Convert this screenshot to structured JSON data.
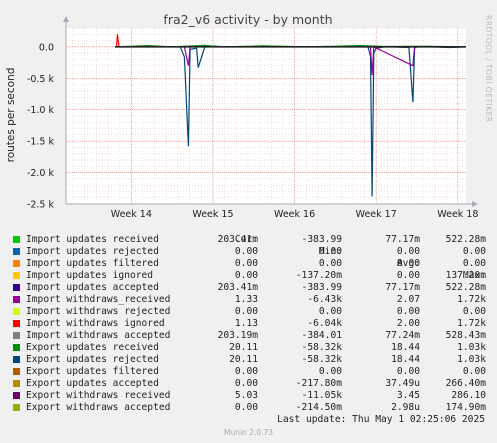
{
  "chart_data": {
    "type": "line",
    "title": "fra2_v6 activity - by month",
    "ylabel": "routes per second",
    "side_label": "RRDTOOL / TOBI OETIKER",
    "ylim": [
      -2500,
      300
    ],
    "y_ticks": [
      {
        "value": 0,
        "label": "0.0"
      },
      {
        "value": -500,
        "label": "-0.5 k"
      },
      {
        "value": -1000,
        "label": "-1.0 k"
      },
      {
        "value": -1500,
        "label": "-1.5 k"
      },
      {
        "value": -2000,
        "label": "-2.0 k"
      },
      {
        "value": -2500,
        "label": "-2.5 k"
      }
    ],
    "x_range": [
      13.2,
      18.1
    ],
    "x_ticks": [
      {
        "value": 14,
        "label": "Week 14"
      },
      {
        "value": 15,
        "label": "Week 15"
      },
      {
        "value": 16,
        "label": "Week 16"
      },
      {
        "value": 17,
        "label": "Week 17"
      },
      {
        "value": 18,
        "label": "Week 18"
      }
    ],
    "grid": true,
    "legend_header": {
      "cur": "Cur:",
      "min": "Min:",
      "avg": "Avg:",
      "max": "Max:"
    },
    "series": [
      {
        "name": "Import updates received",
        "color": "#00cc00",
        "cur": "203.41m",
        "min": "-383.99",
        "avg": "77.17m",
        "max": "522.28m"
      },
      {
        "name": "Import updates rejected",
        "color": "#0066b3",
        "cur": "0.00",
        "min": "0.00",
        "avg": "0.00",
        "max": "0.00"
      },
      {
        "name": "Import updates filtered",
        "color": "#ff8000",
        "cur": "0.00",
        "min": "0.00",
        "avg": "0.00",
        "max": "0.00"
      },
      {
        "name": "Import updates ignored",
        "color": "#ffcc00",
        "cur": "0.00",
        "min": "-137.20m",
        "avg": "0.00",
        "max": "137.20m"
      },
      {
        "name": "Import updates accepted",
        "color": "#330099",
        "cur": "203.41m",
        "min": "-383.99",
        "avg": "77.17m",
        "max": "522.28m"
      },
      {
        "name": "Import withdraws_received",
        "color": "#990099",
        "cur": "1.33",
        "min": "-6.43k",
        "avg": "2.07",
        "max": "1.72k"
      },
      {
        "name": "Import withdraws rejected",
        "color": "#ccff00",
        "cur": "0.00",
        "min": "0.00",
        "avg": "0.00",
        "max": "0.00"
      },
      {
        "name": "Import withdraws ignored",
        "color": "#ff0000",
        "cur": "1.13",
        "min": "-6.04k",
        "avg": "2.00",
        "max": "1.72k"
      },
      {
        "name": "Import withdraws accepted",
        "color": "#808080",
        "cur": "203.19m",
        "min": "-384.01",
        "avg": "77.24m",
        "max": "528.43m"
      },
      {
        "name": "Export updates received",
        "color": "#008f00",
        "cur": "20.11",
        "min": "-58.32k",
        "avg": "18.44",
        "max": "1.03k"
      },
      {
        "name": "Export updates rejected",
        "color": "#00487d",
        "cur": "20.11",
        "min": "-58.32k",
        "avg": "18.44",
        "max": "1.03k"
      },
      {
        "name": "Export updates filtered",
        "color": "#b35a00",
        "cur": "0.00",
        "min": "0.00",
        "avg": "0.00",
        "max": "0.00"
      },
      {
        "name": "Export updates accepted",
        "color": "#b38f00",
        "cur": "0.00",
        "min": "-217.80m",
        "avg": "37.49u",
        "max": "266.40m"
      },
      {
        "name": "Export withdraws received",
        "color": "#6b006b",
        "cur": "5.03",
        "min": "-11.05k",
        "avg": "3.45",
        "max": "286.10"
      },
      {
        "name": "Export withdraws accepted",
        "color": "#8fb300",
        "cur": "0.00",
        "min": "-214.50m",
        "avg": "2.98u",
        "max": "174.90m"
      }
    ],
    "traces": [
      {
        "name": "Export updates rejected",
        "color": "#00487d",
        "x": [
          13.8,
          14.15,
          14.3,
          14.6,
          14.65,
          14.7,
          14.72,
          14.8,
          14.82,
          14.9,
          15.0,
          15.2,
          15.5,
          16.0,
          16.4,
          16.7,
          16.9,
          16.93,
          16.95,
          16.97,
          17.0,
          17.1,
          17.2,
          17.4,
          17.45,
          17.47,
          17.5,
          17.7,
          17.9,
          18.1
        ],
        "y": [
          0,
          10,
          5,
          0,
          -160,
          -1580,
          -40,
          -20,
          -330,
          0,
          10,
          0,
          0,
          0,
          5,
          0,
          0,
          -150,
          -2380,
          -100,
          -20,
          0,
          0,
          -10,
          -880,
          -20,
          0,
          0,
          -10,
          0
        ]
      },
      {
        "name": "Import withdraws_received",
        "color": "#990099",
        "x": [
          13.8,
          14.65,
          14.7,
          14.72,
          16.93,
          16.95,
          16.97,
          17.45,
          17.47,
          18.1
        ],
        "y": [
          0,
          0,
          -300,
          0,
          0,
          -450,
          0,
          -300,
          0,
          0
        ]
      },
      {
        "name": "Export updates received",
        "color": "#008f00",
        "x": [
          13.8,
          14.2,
          14.5,
          14.9,
          15.1,
          15.6,
          16.2,
          16.8,
          17.1,
          17.6,
          18.1
        ],
        "y": [
          0,
          20,
          0,
          25,
          0,
          15,
          0,
          20,
          5,
          10,
          0
        ]
      },
      {
        "name": "Import withdraws ignored",
        "color": "#ff0000",
        "x": [
          13.8,
          13.82,
          13.83,
          13.85,
          18.1
        ],
        "y": [
          0,
          0,
          200,
          0,
          0
        ]
      }
    ]
  },
  "footer": {
    "last_update": "Last update: Thu May  1 02:25:06 2025",
    "munin": "Munin 2.0.73"
  }
}
